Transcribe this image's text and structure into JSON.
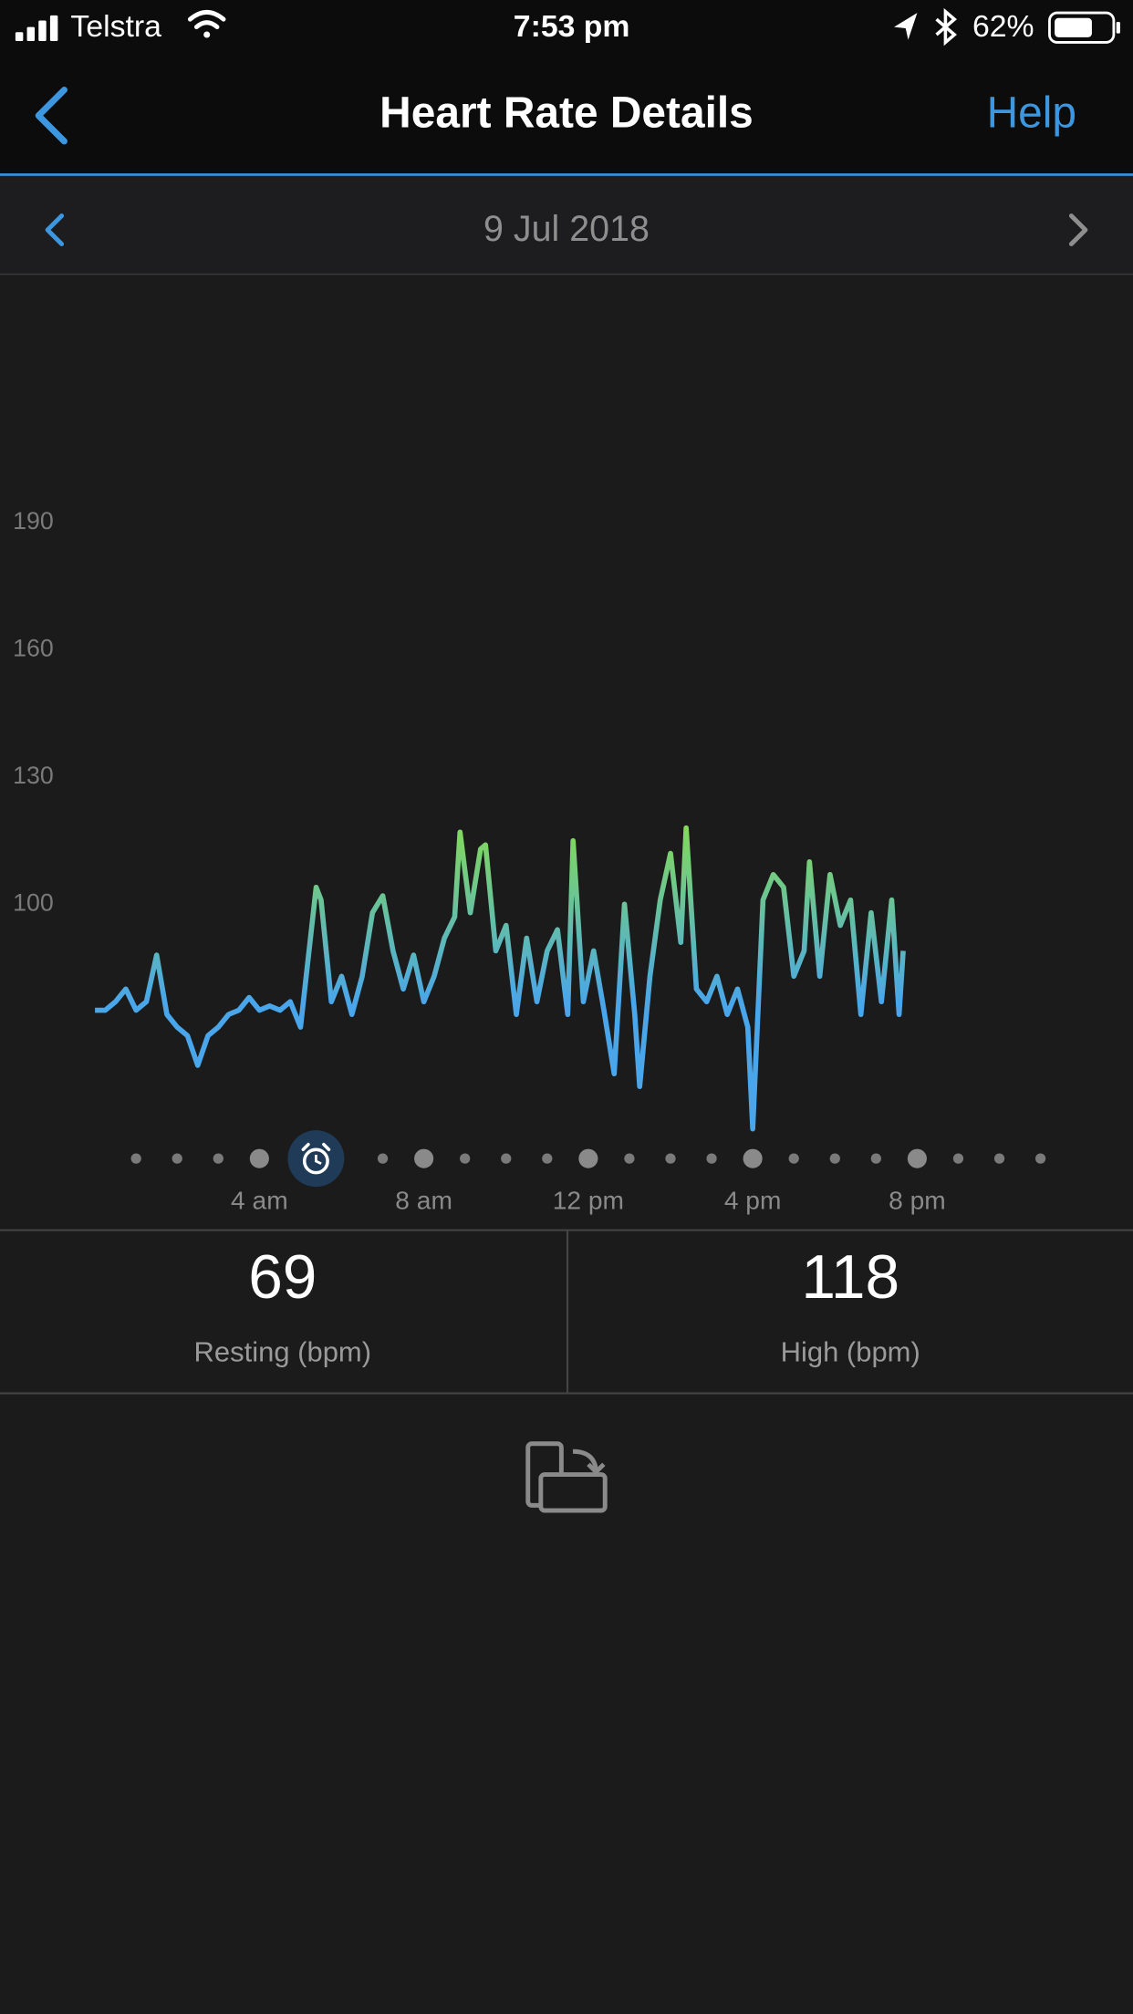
{
  "status_bar": {
    "carrier": "Telstra",
    "time": "7:53 pm",
    "battery": "62%"
  },
  "nav": {
    "title": "Heart Rate Details",
    "action": "Help"
  },
  "date": "9 Jul 2018",
  "chart_data": {
    "type": "line",
    "x": [
      0,
      0.25,
      0.5,
      0.75,
      1,
      1.25,
      1.5,
      1.75,
      2,
      2.25,
      2.5,
      2.75,
      3,
      3.25,
      3.5,
      3.75,
      4,
      4.25,
      4.5,
      4.75,
      5,
      5.38,
      5.5,
      5.75,
      6,
      6.25,
      6.5,
      6.75,
      7,
      7.25,
      7.5,
      7.75,
      8,
      8.25,
      8.5,
      8.75,
      8.88,
      9.13,
      9.38,
      9.5,
      9.75,
      10,
      10.25,
      10.5,
      10.75,
      11,
      11.25,
      11.5,
      11.63,
      11.88,
      12.13,
      12.38,
      12.63,
      12.88,
      13.13,
      13.25,
      13.5,
      13.75,
      14,
      14.25,
      14.38,
      14.63,
      14.88,
      15.13,
      15.38,
      15.63,
      15.88,
      16,
      16.25,
      16.5,
      16.75,
      17,
      17.25,
      17.38,
      17.63,
      17.88,
      18.13,
      18.38,
      18.63,
      18.88,
      19.13,
      19.38,
      19.56,
      19.66
    ],
    "values": [
      75,
      75,
      77,
      80,
      75,
      77,
      88,
      74,
      71,
      69,
      62,
      69,
      71,
      74,
      75,
      78,
      75,
      76,
      75,
      77,
      71,
      104,
      101,
      77,
      83,
      74,
      83,
      98,
      102,
      89,
      80,
      88,
      77,
      83,
      92,
      97,
      117,
      98,
      113,
      114,
      89,
      95,
      74,
      92,
      77,
      89,
      94,
      74,
      115,
      77,
      89,
      75,
      60,
      100,
      74,
      57,
      83,
      101,
      112,
      91,
      118,
      80,
      77,
      83,
      74,
      80,
      71,
      47,
      101,
      107,
      104,
      83,
      89,
      110,
      83,
      107,
      95,
      101,
      74,
      98,
      77,
      101,
      74,
      89
    ],
    "gradient": [
      "#4aa6ea",
      "#84db55"
    ],
    "xlim": [
      -2.31,
      25.25
    ],
    "ylim": [
      45,
      248
    ],
    "yticks": [
      100,
      130,
      160,
      190
    ],
    "xticks": [
      {
        "value": 4,
        "label": "4 am"
      },
      {
        "value": 8,
        "label": "8 am"
      },
      {
        "value": 12,
        "label": "12 pm"
      },
      {
        "value": 16,
        "label": "4 pm"
      },
      {
        "value": 20,
        "label": "8 pm"
      }
    ]
  },
  "stats": [
    {
      "value": 69,
      "label": "Resting (bpm)"
    },
    {
      "value": 118,
      "label": "High (bpm)"
    }
  ]
}
